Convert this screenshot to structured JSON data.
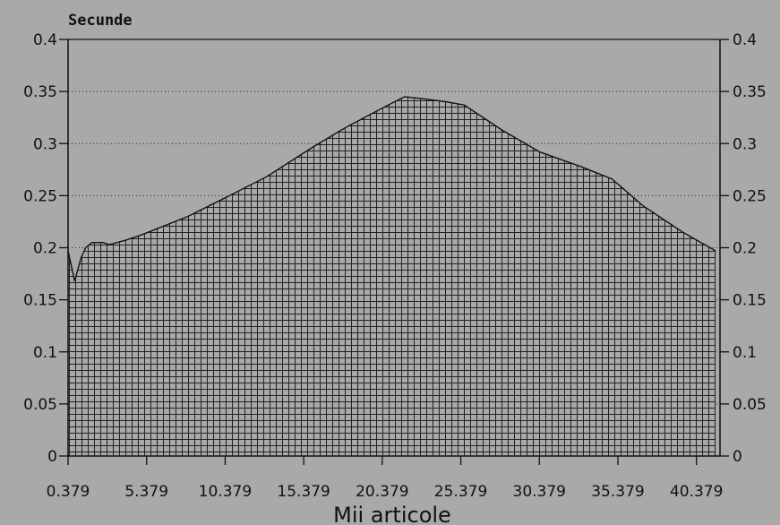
{
  "chart_data": {
    "type": "area",
    "ylabel": "Secunde",
    "xlabel": "Mii articole",
    "xlim": [
      0.379,
      41.879
    ],
    "ylim": [
      0,
      0.4
    ],
    "x_ticks": [
      0.379,
      5.379,
      10.379,
      15.379,
      20.379,
      25.379,
      30.379,
      35.379,
      40.379
    ],
    "x_tick_labels": [
      "0.379",
      "5.379",
      "10.379",
      "15.379",
      "20.379",
      "25.379",
      "30.379",
      "35.379",
      "40.379"
    ],
    "y_ticks": [
      0,
      0.05,
      0.1,
      0.15,
      0.2,
      0.25,
      0.3,
      0.35,
      0.4
    ],
    "y_tick_labels": [
      "0",
      "0.05",
      "0.1",
      "0.15",
      "0.2",
      "0.25",
      "0.3",
      "0.35",
      "0.4"
    ],
    "grid": "horizontal dotted",
    "fill_pattern": "crosshatch",
    "x": [
      0.379,
      0.8,
      1.2,
      1.5,
      1.9,
      2.3,
      2.6,
      3.0,
      3.5,
      4.0,
      5.0,
      8.0,
      10.0,
      13.0,
      16.0,
      18.0,
      20.5,
      21.8,
      23.0,
      24.5,
      25.6,
      28.0,
      30.4,
      33.0,
      35.0,
      37.0,
      39.5,
      41.6
    ],
    "y": [
      0.197,
      0.168,
      0.19,
      0.2,
      0.205,
      0.205,
      0.205,
      0.203,
      0.205,
      0.207,
      0.212,
      0.23,
      0.245,
      0.268,
      0.297,
      0.315,
      0.335,
      0.345,
      0.343,
      0.34,
      0.337,
      0.313,
      0.292,
      0.278,
      0.266,
      0.24,
      0.215,
      0.197
    ]
  }
}
